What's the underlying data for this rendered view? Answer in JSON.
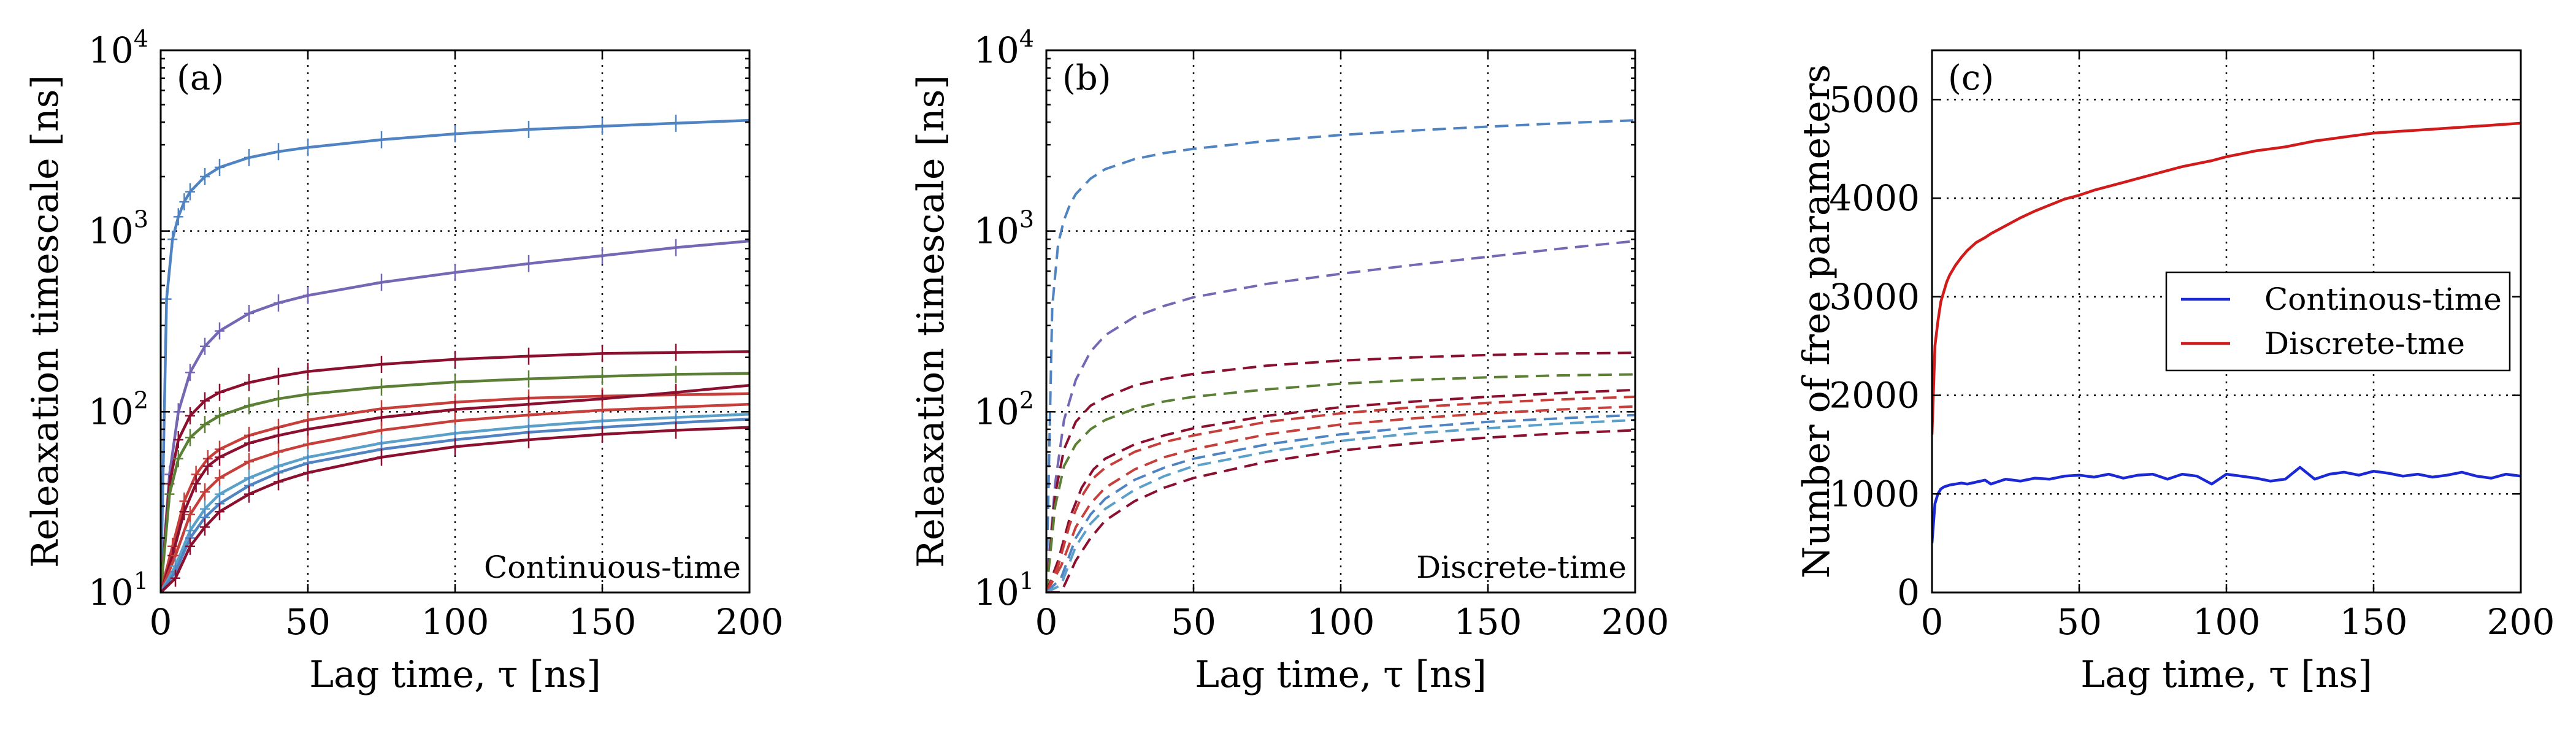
{
  "colors": {
    "c1": "#4f83c2",
    "c2": "#7667b5",
    "c3": "#8b0f2e",
    "c4": "#5a7f35",
    "c5": "#c63f3a",
    "c6": "#5aa0c9",
    "continuous": "#1a28d6",
    "discrete": "#d11a1a"
  },
  "chart_data": [
    {
      "type": "line",
      "panel_label": "(a)",
      "corner_label": "Continuous-time",
      "xlabel": "Lag time, τ [ns]",
      "ylabel": "Releaxation timescale [ns]",
      "xlim": [
        0,
        200
      ],
      "ylim": [
        10,
        10000
      ],
      "y_scale": "log",
      "x_ticks": [
        "0",
        "50",
        "100",
        "150",
        "200"
      ],
      "y_ticks": [
        {
          "base": "10",
          "exp": "1"
        },
        {
          "base": "10",
          "exp": "2"
        },
        {
          "base": "10",
          "exp": "3"
        },
        {
          "base": "10",
          "exp": "4"
        }
      ],
      "grid": true,
      "line_style": "solid",
      "error_bars": true,
      "series": [
        {
          "color_key": "c1",
          "x": [
            0,
            2,
            4,
            6,
            8,
            10,
            15,
            20,
            30,
            40,
            50,
            75,
            100,
            125,
            150,
            175,
            200
          ],
          "values": [
            10,
            420,
            900,
            1200,
            1450,
            1650,
            2000,
            2250,
            2550,
            2750,
            2900,
            3200,
            3450,
            3650,
            3800,
            3950,
            4100
          ]
        },
        {
          "color_key": "c2",
          "x": [
            0,
            3,
            6,
            10,
            15,
            20,
            30,
            40,
            50,
            75,
            100,
            125,
            150,
            175,
            200
          ],
          "values": [
            10,
            45,
            100,
            165,
            230,
            280,
            350,
            400,
            440,
            520,
            590,
            660,
            730,
            810,
            880
          ]
        },
        {
          "color_key": "c3",
          "x": [
            0,
            3,
            6,
            10,
            15,
            20,
            30,
            40,
            50,
            75,
            100,
            125,
            150,
            175,
            200
          ],
          "values": [
            10,
            40,
            70,
            95,
            115,
            128,
            145,
            157,
            167,
            183,
            195,
            203,
            210,
            213,
            215
          ]
        },
        {
          "color_key": "c4",
          "x": [
            0,
            3,
            6,
            10,
            15,
            20,
            30,
            40,
            50,
            75,
            100,
            125,
            150,
            175,
            200
          ],
          "values": [
            10,
            35,
            55,
            72,
            85,
            95,
            108,
            118,
            125,
            137,
            146,
            152,
            157,
            161,
            163
          ]
        },
        {
          "color_key": "c5",
          "x": [
            0,
            4,
            8,
            12,
            16,
            20,
            30,
            40,
            50,
            75,
            100,
            125,
            150,
            175,
            200
          ],
          "values": [
            10,
            18,
            32,
            45,
            55,
            62,
            74,
            82,
            90,
            104,
            113,
            119,
            122,
            124,
            126
          ]
        },
        {
          "color_key": "c3",
          "x": [
            0,
            4,
            8,
            12,
            16,
            20,
            30,
            40,
            50,
            75,
            100,
            125,
            150,
            175,
            200
          ],
          "values": [
            10,
            16,
            28,
            40,
            50,
            56,
            67,
            74,
            80,
            93,
            103,
            110,
            118,
            128,
            140
          ]
        },
        {
          "color_key": "c5",
          "x": [
            0,
            5,
            10,
            15,
            20,
            30,
            40,
            50,
            75,
            100,
            125,
            150,
            175,
            200
          ],
          "values": [
            10,
            16,
            27,
            36,
            43,
            53,
            60,
            66,
            79,
            89,
            96,
            102,
            106,
            110
          ]
        },
        {
          "color_key": "c6",
          "x": [
            0,
            5,
            10,
            15,
            20,
            30,
            40,
            50,
            75,
            100,
            125,
            150,
            175,
            200
          ],
          "values": [
            10,
            14,
            22,
            29,
            35,
            43,
            50,
            56,
            67,
            76,
            83,
            89,
            93,
            97
          ]
        },
        {
          "color_key": "c1",
          "x": [
            0,
            5,
            10,
            15,
            20,
            30,
            40,
            50,
            75,
            100,
            125,
            150,
            175,
            200
          ],
          "values": [
            10,
            13,
            20,
            26,
            31,
            39,
            46,
            52,
            62,
            70,
            77,
            82,
            87,
            91
          ]
        },
        {
          "color_key": "c3",
          "x": [
            0,
            5,
            10,
            15,
            20,
            30,
            40,
            50,
            75,
            100,
            125,
            150,
            175,
            200
          ],
          "values": [
            10,
            12,
            18,
            23,
            28,
            35,
            41,
            46,
            56,
            64,
            70,
            75,
            79,
            82
          ]
        }
      ]
    },
    {
      "type": "line",
      "panel_label": "(b)",
      "corner_label": "Discrete-time",
      "xlabel": "Lag time, τ [ns]",
      "ylabel": "Releaxation timescale [ns]",
      "xlim": [
        0,
        200
      ],
      "ylim": [
        10,
        10000
      ],
      "y_scale": "log",
      "x_ticks": [
        "0",
        "50",
        "100",
        "150",
        "200"
      ],
      "y_ticks": [
        {
          "base": "10",
          "exp": "1"
        },
        {
          "base": "10",
          "exp": "2"
        },
        {
          "base": "10",
          "exp": "3"
        },
        {
          "base": "10",
          "exp": "4"
        }
      ],
      "grid": true,
      "line_style": "dashed",
      "error_bars": false,
      "series": [
        {
          "color_key": "c1",
          "x": [
            0,
            2,
            4,
            6,
            8,
            10,
            15,
            20,
            30,
            40,
            50,
            75,
            100,
            125,
            150,
            175,
            200
          ],
          "values": [
            10,
            380,
            850,
            1150,
            1400,
            1600,
            1950,
            2200,
            2500,
            2700,
            2850,
            3150,
            3400,
            3600,
            3780,
            3950,
            4100
          ]
        },
        {
          "color_key": "c2",
          "x": [
            0,
            3,
            6,
            10,
            15,
            20,
            30,
            40,
            50,
            75,
            100,
            125,
            150,
            175,
            200
          ],
          "values": [
            10,
            40,
            90,
            150,
            215,
            265,
            335,
            385,
            430,
            510,
            580,
            650,
            720,
            800,
            880
          ]
        },
        {
          "color_key": "c3",
          "x": [
            0,
            3,
            6,
            10,
            15,
            20,
            30,
            40,
            50,
            75,
            100,
            125,
            150,
            175,
            200
          ],
          "values": [
            10,
            35,
            62,
            88,
            108,
            120,
            140,
            152,
            162,
            180,
            192,
            200,
            206,
            210,
            212
          ]
        },
        {
          "color_key": "c4",
          "x": [
            0,
            3,
            6,
            10,
            15,
            20,
            30,
            40,
            50,
            75,
            100,
            125,
            150,
            175,
            200
          ],
          "values": [
            10,
            30,
            50,
            66,
            80,
            90,
            104,
            114,
            121,
            133,
            143,
            150,
            155,
            159,
            161
          ]
        },
        {
          "color_key": "c3",
          "x": [
            0,
            4,
            8,
            12,
            16,
            20,
            30,
            40,
            50,
            75,
            100,
            125,
            150,
            175,
            200
          ],
          "values": [
            10,
            15,
            26,
            38,
            48,
            55,
            66,
            74,
            81,
            95,
            106,
            114,
            121,
            127,
            132
          ]
        },
        {
          "color_key": "c5",
          "x": [
            0,
            4,
            8,
            12,
            16,
            20,
            30,
            40,
            50,
            75,
            100,
            125,
            150,
            175,
            200
          ],
          "values": [
            10,
            14,
            24,
            34,
            43,
            49,
            60,
            68,
            74,
            88,
            98,
            106,
            112,
            117,
            121
          ]
        },
        {
          "color_key": "c5",
          "x": [
            0,
            5,
            10,
            15,
            20,
            30,
            40,
            50,
            75,
            100,
            125,
            150,
            175,
            200
          ],
          "values": [
            10,
            14,
            23,
            31,
            38,
            48,
            56,
            62,
            75,
            85,
            92,
            98,
            103,
            107
          ]
        },
        {
          "color_key": "c1",
          "x": [
            0,
            5,
            10,
            15,
            20,
            30,
            40,
            50,
            75,
            100,
            125,
            150,
            175,
            200
          ],
          "values": [
            10,
            12,
            20,
            27,
            33,
            42,
            49,
            55,
            66,
            75,
            82,
            88,
            92,
            96
          ]
        },
        {
          "color_key": "c6",
          "x": [
            0,
            5,
            10,
            15,
            20,
            30,
            40,
            50,
            75,
            100,
            125,
            150,
            175,
            200
          ],
          "values": [
            10,
            11,
            18,
            24,
            29,
            37,
            44,
            50,
            60,
            69,
            76,
            81,
            86,
            90
          ]
        },
        {
          "color_key": "c3",
          "x": [
            0,
            5,
            10,
            15,
            20,
            30,
            40,
            50,
            75,
            100,
            125,
            150,
            175,
            200
          ],
          "values": [
            10,
            10,
            15,
            20,
            25,
            32,
            38,
            43,
            53,
            61,
            67,
            72,
            76,
            79
          ]
        }
      ]
    },
    {
      "type": "line",
      "panel_label": "(c)",
      "xlabel": "Lag time, τ [ns]",
      "ylabel": "Number of free parameters",
      "xlim": [
        0,
        200
      ],
      "ylim": [
        0,
        5500
      ],
      "y_scale": "linear",
      "x_ticks": [
        "0",
        "50",
        "100",
        "150",
        "200"
      ],
      "y_ticks": [
        "0",
        "1000",
        "2000",
        "3000",
        "4000",
        "5000"
      ],
      "grid": true,
      "legend_position": "center-right",
      "series": [
        {
          "name": "Continous-time",
          "color_key": "continuous",
          "x": [
            0,
            1,
            2,
            3,
            4,
            5,
            6,
            8,
            10,
            12,
            15,
            18,
            20,
            25,
            30,
            35,
            40,
            45,
            50,
            55,
            60,
            65,
            70,
            75,
            80,
            85,
            90,
            95,
            100,
            105,
            110,
            115,
            120,
            125,
            130,
            135,
            140,
            145,
            150,
            155,
            160,
            165,
            170,
            175,
            180,
            185,
            190,
            195,
            200
          ],
          "values": [
            500,
            900,
            1000,
            1050,
            1070,
            1080,
            1090,
            1100,
            1110,
            1100,
            1120,
            1140,
            1100,
            1150,
            1130,
            1160,
            1150,
            1180,
            1190,
            1170,
            1200,
            1160,
            1190,
            1200,
            1150,
            1200,
            1180,
            1100,
            1200,
            1180,
            1160,
            1130,
            1150,
            1270,
            1150,
            1200,
            1220,
            1190,
            1230,
            1210,
            1180,
            1200,
            1170,
            1190,
            1220,
            1180,
            1160,
            1200,
            1180
          ]
        },
        {
          "name": "Discrete-tme",
          "color_key": "discrete",
          "x": [
            0,
            1,
            2,
            3,
            4,
            5,
            6,
            8,
            10,
            12,
            15,
            18,
            20,
            25,
            30,
            35,
            40,
            45,
            50,
            55,
            60,
            65,
            70,
            75,
            80,
            85,
            90,
            95,
            100,
            105,
            110,
            115,
            120,
            125,
            130,
            135,
            140,
            145,
            150,
            155,
            160,
            165,
            170,
            175,
            180,
            185,
            190,
            195,
            200
          ],
          "values": [
            1600,
            2500,
            2750,
            2950,
            3050,
            3150,
            3220,
            3320,
            3400,
            3470,
            3550,
            3600,
            3640,
            3720,
            3800,
            3870,
            3930,
            3990,
            4030,
            4080,
            4120,
            4160,
            4200,
            4240,
            4280,
            4320,
            4350,
            4380,
            4420,
            4450,
            4480,
            4500,
            4520,
            4550,
            4580,
            4600,
            4620,
            4640,
            4660,
            4670,
            4680,
            4690,
            4700,
            4710,
            4720,
            4730,
            4740,
            4750,
            4760
          ]
        }
      ]
    }
  ]
}
